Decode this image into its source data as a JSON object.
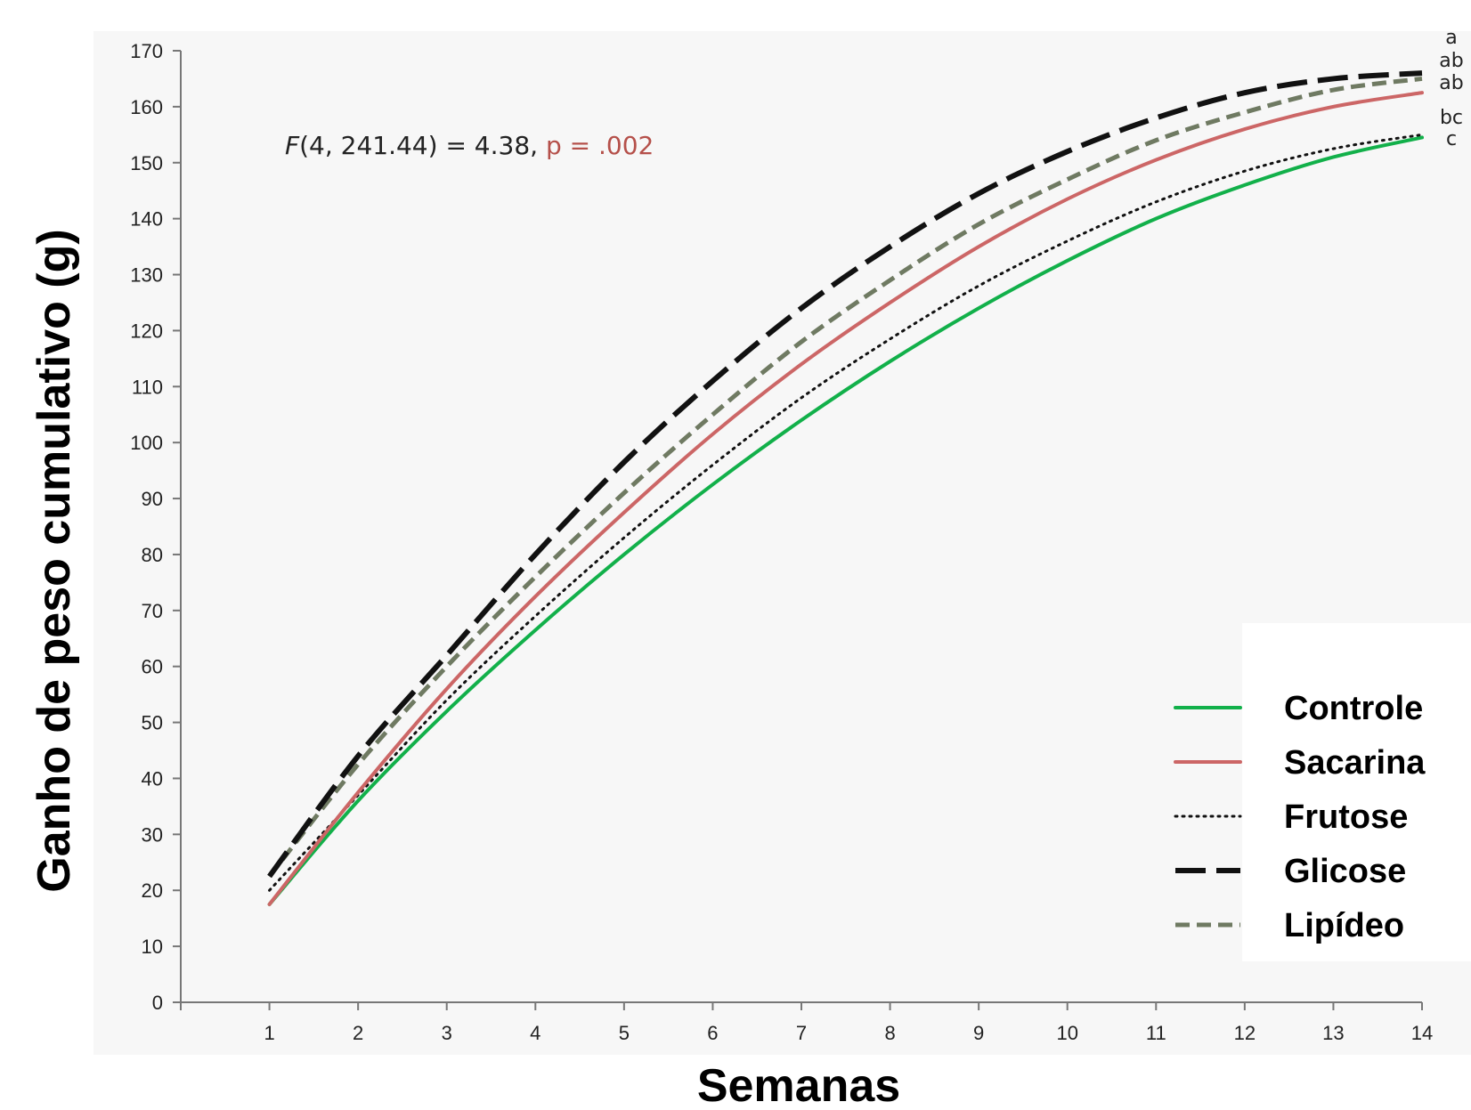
{
  "chart_data": {
    "type": "line",
    "xlabel": "Semanas",
    "ylabel": "Ganho de peso cumulativo (g)",
    "x": [
      1,
      2,
      3,
      4,
      5,
      6,
      7,
      8,
      9,
      10,
      11,
      12,
      13,
      14
    ],
    "xlim": [
      0,
      14
    ],
    "ylim": [
      0,
      170
    ],
    "yticks": [
      0,
      10,
      20,
      30,
      40,
      50,
      60,
      70,
      80,
      90,
      100,
      110,
      120,
      130,
      140,
      150,
      160,
      170
    ],
    "grid": false,
    "legend_position": "bottom-right",
    "annotation": {
      "stat_prefix_italic": "F",
      "stat_text": "(4, 241.44) = 4.38, ",
      "p_text": "p = .002",
      "p_color": "#b5504a"
    },
    "series": [
      {
        "name": "Controle",
        "color": "#12b04a",
        "style": "solid",
        "values": [
          17.5,
          36,
          52,
          66.5,
          80,
          92.5,
          104,
          114.5,
          124,
          132.5,
          140,
          146,
          151,
          154.5
        ],
        "sig_letter": "c"
      },
      {
        "name": "Sacarina",
        "color": "#cc6666",
        "style": "solid",
        "values": [
          17.5,
          37.5,
          56,
          72.5,
          87.5,
          101.5,
          114,
          125,
          135,
          143.5,
          150.5,
          156,
          160,
          162.5
        ],
        "sig_letter": "ab"
      },
      {
        "name": "Frutose",
        "color": "#111111",
        "style": "dotted",
        "values": [
          20,
          37,
          54,
          69,
          83,
          96,
          108,
          118.5,
          128,
          136,
          143,
          148.5,
          152.5,
          155
        ],
        "sig_letter": "bc"
      },
      {
        "name": "Glicose",
        "color": "#111111",
        "style": "longdash",
        "values": [
          22.5,
          44,
          62,
          80,
          96.5,
          111,
          124,
          135,
          144.5,
          152,
          158,
          162.5,
          165,
          166
        ],
        "sig_letter": "a"
      },
      {
        "name": "Lipídeo",
        "color": "#6f7a62",
        "style": "dashed",
        "values": [
          22.5,
          42.5,
          60,
          76,
          91,
          105,
          118,
          129,
          139,
          147,
          154,
          159,
          163,
          165
        ],
        "sig_letter": "ab"
      }
    ]
  }
}
